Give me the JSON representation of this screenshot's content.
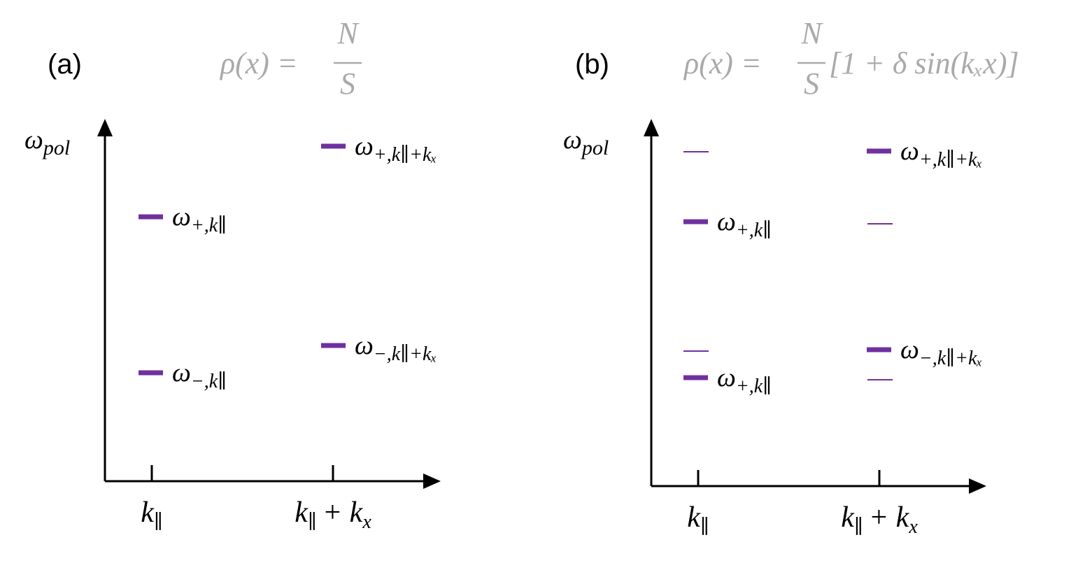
{
  "panels": [
    {
      "tag": "(a)",
      "density": {
        "lhs": "ρ(x) =",
        "numerator": "N",
        "denominator": "S"
      },
      "y_axis": {
        "symbol": "ω",
        "subscript": "pol"
      },
      "x_ticks": [
        {
          "symbol": "k",
          "subscript": "∥"
        },
        {
          "symbol": "k",
          "subscript": "∥",
          "rest": "+ k",
          "rest_subscript": "x"
        }
      ],
      "levels": [
        {
          "symbol": "ω",
          "subscript": "+,k∥"
        },
        {
          "symbol": "ω",
          "subscript": "−,k∥"
        },
        {
          "symbol": "ω",
          "subscript": "+,k∥+kₓ"
        },
        {
          "symbol": "ω",
          "subscript": "−,k∥+kₓ"
        }
      ]
    },
    {
      "tag": "(b)",
      "density": {
        "lhs": "ρ(x) =",
        "numerator": "N",
        "denominator": "S",
        "rest": "[1 + δ sin(kₓx)]"
      },
      "y_axis": {
        "symbol": "ω",
        "subscript": "pol"
      },
      "x_ticks": [
        {
          "symbol": "k",
          "subscript": "∥"
        },
        {
          "symbol": "k",
          "subscript": "∥",
          "rest": "+ k",
          "rest_subscript": "x"
        }
      ],
      "levels": [
        {
          "symbol": "ω",
          "subscript": "+,k∥"
        },
        {
          "symbol": "ω",
          "subscript": "+,k∥"
        },
        {
          "symbol": "ω",
          "subscript": "+,k∥+kₓ"
        },
        {
          "symbol": "ω",
          "subscript": "−,k∥+kₓ"
        }
      ]
    }
  ]
}
